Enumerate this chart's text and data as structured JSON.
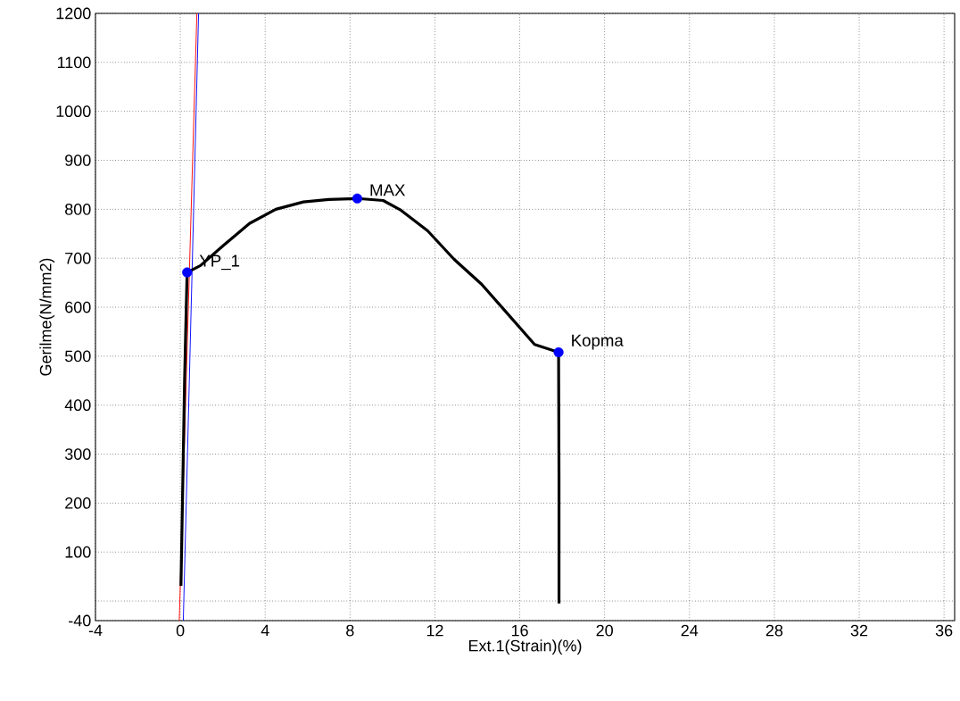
{
  "chart_data": {
    "type": "line",
    "xlabel": "Ext.1(Strain)(%)",
    "ylabel": "Gerilme(N/mm2)",
    "xlim": [
      -4,
      36.5
    ],
    "ylim": [
      -40,
      1200
    ],
    "xticks": [
      -4,
      0,
      4,
      8,
      12,
      16,
      20,
      24,
      28,
      32,
      36
    ],
    "yticks": [
      -40,
      {
        "value": 0,
        "label": null
      },
      100,
      200,
      300,
      400,
      500,
      600,
      700,
      800,
      900,
      1000,
      1100,
      1200
    ],
    "grid": true,
    "series": [
      {
        "color": "#ff0000",
        "x": [
          -0.05,
          0.78
        ],
        "values": [
          -40,
          1200
        ]
      },
      {
        "color": "#0000ff",
        "x": [
          0.14,
          0.86
        ],
        "values": [
          -40,
          1200
        ]
      },
      {
        "color": "#000000",
        "x": [
          0.03,
          0.1,
          0.2,
          0.28,
          0.32,
          0.95,
          2.0,
          3.26,
          4.5,
          5.8,
          7.0,
          8.34,
          9.56,
          10.4,
          11.66,
          12.9,
          14.2,
          15.4,
          16.7,
          17.83,
          17.85,
          17.85
        ],
        "values": [
          31,
          200,
          450,
          600,
          671,
          685,
          725,
          771,
          800,
          815,
          820,
          822,
          818,
          798,
          756,
          698,
          647,
          588,
          524,
          508,
          250,
          -5
        ]
      },
      {
        "type": "scatter",
        "color": "#0000ff",
        "x": [
          0.32,
          8.34,
          17.83
        ],
        "values": [
          671,
          822,
          508
        ]
      }
    ],
    "annotations": [
      {
        "text": "YP_1",
        "x": 0.32,
        "y": 671
      },
      {
        "text": "MAX",
        "x": 8.34,
        "y": 822
      },
      {
        "text": "Kopma",
        "x": 17.83,
        "y": 508
      }
    ]
  }
}
